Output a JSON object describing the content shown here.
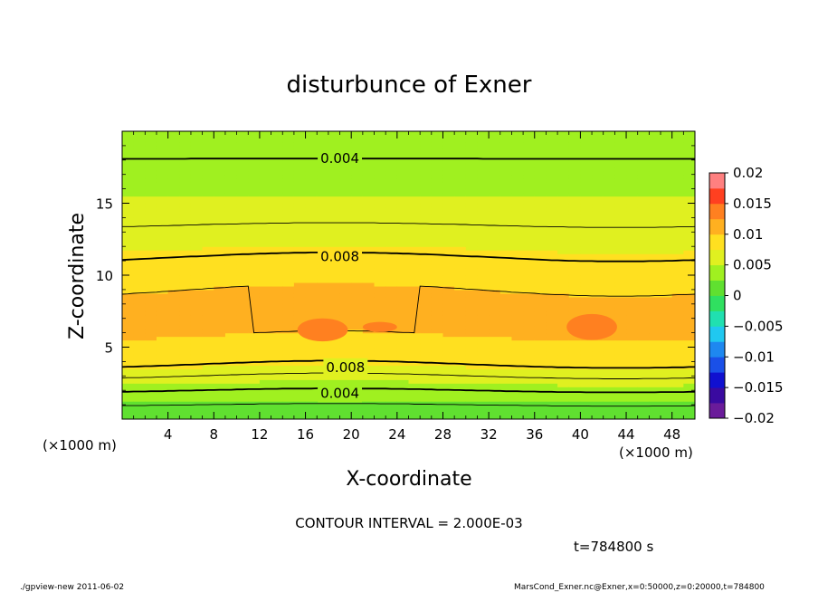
{
  "chart_data": {
    "type": "heatmap",
    "title": "disturbunce of Exner",
    "xlabel": "X-coordinate",
    "ylabel": "Z-coordinate",
    "x_unit": "(×1000 m)",
    "y_unit": "(×1000 m)",
    "xlim": [
      0,
      50
    ],
    "ylim": [
      0,
      20
    ],
    "x_ticks": [
      4,
      8,
      12,
      16,
      20,
      24,
      28,
      32,
      36,
      40,
      44,
      48
    ],
    "y_ticks": [
      5,
      10,
      15
    ],
    "colorbar": {
      "ticks": [
        0.02,
        0.015,
        0.01,
        0.005,
        0,
        -0.005,
        -0.01,
        -0.015,
        -0.02
      ],
      "tick_labels": [
        "0.02",
        "0.015",
        "0.01",
        "0.005",
        "0",
        "−0.005",
        "−0.01",
        "−0.015",
        "−0.02"
      ],
      "range": [
        -0.02,
        0.02
      ],
      "levels": 16,
      "colors": [
        "#6a1b9a",
        "#3a0aa0",
        "#1010d0",
        "#1a50e8",
        "#1e88f0",
        "#20c8f0",
        "#20e0b0",
        "#30e060",
        "#60e030",
        "#a0f020",
        "#e0f020",
        "#ffe020",
        "#ffb020",
        "#ff8020",
        "#ff4020",
        "#ff8080"
      ]
    },
    "contour_labels": [
      {
        "text": "0.004",
        "x": 19,
        "z": 18.1
      },
      {
        "text": "0.008",
        "x": 19,
        "z": 11.3
      },
      {
        "text": "0.008",
        "x": 19.5,
        "z": 3.6
      },
      {
        "text": "0.004",
        "x": 19,
        "z": 1.8
      }
    ],
    "contour_interval": "CONTOUR INTERVAL = 2.000E-03",
    "time": "t=784800 s",
    "footer_left": "./gpview-new   2011-06-02",
    "footer_right": "MarsCond_Exner.nc@Exner,x=0:50000,z=0:20000,t=784800"
  }
}
